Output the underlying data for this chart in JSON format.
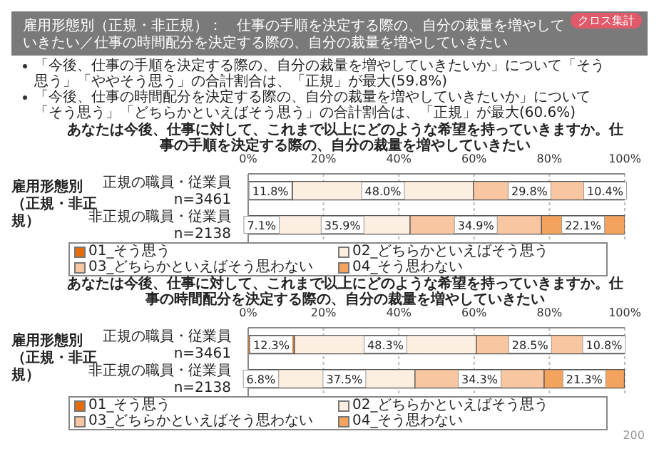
{
  "chart_data": [
    {
      "type": "bar",
      "orientation": "horizontal",
      "stacked": true,
      "title": "雇用形態別（正規・非正規）：　仕事の手順を決定する際の、自分の裁量を増やしていきたい／仕事の時間配分を決定する際の、自分の裁量を増やしていきたい",
      "subtitle": "あなたは今後、仕事に対して、これまで以上にどのような希望を持っていきますか。仕事の手順を決定する際の、自分の裁量を増やしていきたい",
      "annotations": [
        "クロス集計",
        "「今後、仕事の手順を決定する際の、自分の裁量を増やしていきたいか」について「そう思う」「ややそう思う」の合計割合は、「正規」が最大(59.8%)",
        "「今後、仕事の時間配分を決定する際の、自分の裁量を増やしていきたいか」について「そう思う」「どちらかといえばそう思う」の合計割合は、「正規」が最大(60.6%)"
      ],
      "ylabel": "雇用形態別（正規・非正規）",
      "categories": [
        "正規の職員・従業員\nn=3461",
        "非正規の職員・従業員\nn=2138"
      ],
      "series": [
        {
          "name": "01_そう思う",
          "color": "#e46c0a",
          "values": [
            11.8,
            7.1
          ],
          "value_labels": [
            "11.8%",
            "7.1%"
          ]
        },
        {
          "name": "02_どちらかといえばそう思う",
          "color": "#fdeee2",
          "values": [
            48.0,
            35.9
          ],
          "value_labels": [
            "48.0%",
            "35.9%"
          ]
        },
        {
          "name": "03_どちらかといえばそう思わない",
          "color": "#f8c6a0",
          "values": [
            29.8,
            34.9
          ],
          "value_labels": [
            "29.8%",
            "34.9%"
          ]
        },
        {
          "name": "04_そう思わない",
          "color": "#f4a35e",
          "values": [
            10.4,
            22.1
          ],
          "value_labels": [
            "10.4%",
            "22.1%"
          ]
        }
      ],
      "xlim": [
        0,
        100
      ],
      "xticks": [
        {
          "value": 0,
          "label": "0%"
        },
        {
          "value": 20,
          "label": "20%"
        },
        {
          "value": 40,
          "label": "40%"
        },
        {
          "value": 60,
          "label": "60%"
        },
        {
          "value": 80,
          "label": "80%"
        },
        {
          "value": 100,
          "label": "100%"
        }
      ],
      "grid": "x",
      "legend": "bottom"
    },
    {
      "type": "bar",
      "orientation": "horizontal",
      "stacked": true,
      "subtitle": "あなたは今後、仕事に対して、これまで以上にどのような希望を持っていきますか。仕事の時間配分を決定する際の、自分の裁量を増やしていきたい",
      "annotations": [
        "200"
      ],
      "ylabel": "雇用形態別（正規・非正規）",
      "categories": [
        "正規の職員・従業員\nn=3461",
        "非正規の職員・従業員\nn=2138"
      ],
      "series": [
        {
          "name": "01_そう思う",
          "color": "#e46c0a",
          "values": [
            12.3,
            6.8
          ],
          "value_labels": [
            "12.3%",
            "6.8%"
          ]
        },
        {
          "name": "02_どちらかといえばそう思う",
          "color": "#fdeee2",
          "values": [
            48.3,
            37.5
          ],
          "value_labels": [
            "48.3%",
            "37.5%"
          ]
        },
        {
          "name": "03_どちらかといえばそう思わない",
          "color": "#f8c6a0",
          "values": [
            28.5,
            34.3
          ],
          "value_labels": [
            "28.5%",
            "34.3%"
          ]
        },
        {
          "name": "04_そう思わない",
          "color": "#f4a35e",
          "values": [
            10.8,
            21.3
          ],
          "value_labels": [
            "10.8%",
            "21.3%"
          ]
        }
      ],
      "xlim": [
        0,
        100
      ],
      "xticks": [
        {
          "value": 0,
          "label": "0%"
        },
        {
          "value": 20,
          "label": "20%"
        },
        {
          "value": 40,
          "label": "40%"
        },
        {
          "value": 60,
          "label": "60%"
        },
        {
          "value": 80,
          "label": "80%"
        },
        {
          "value": 100,
          "label": "100%"
        }
      ],
      "grid": "x",
      "legend": "bottom"
    }
  ]
}
